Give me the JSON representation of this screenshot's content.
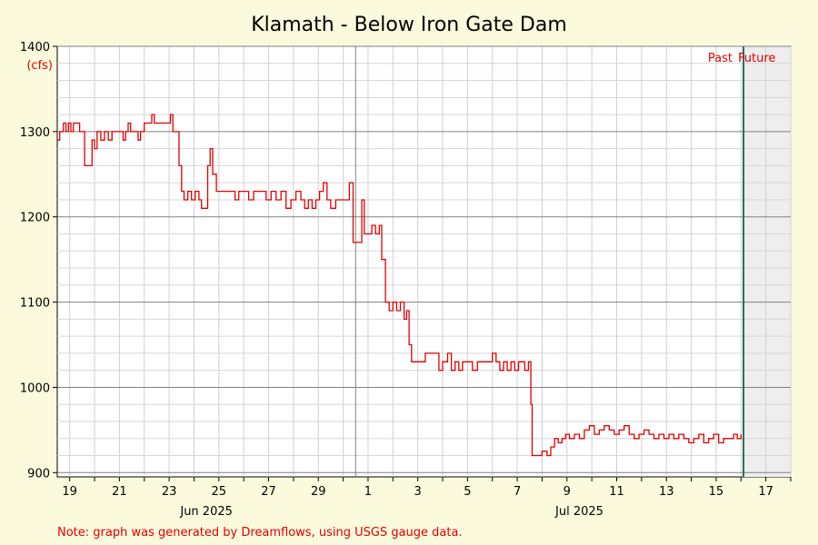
{
  "chart_data": {
    "type": "line",
    "title": "Klamath - Below Iron Gate Dam",
    "ylabel": "(cfs)",
    "xlabel": "",
    "ylim": [
      895,
      1400
    ],
    "y_ticks": [
      900,
      1000,
      1100,
      1200,
      1300,
      1400
    ],
    "xlim": [
      18.5,
      48
    ],
    "x_ticks": [
      {
        "day": 19,
        "label": "19"
      },
      {
        "day": 21,
        "label": "21"
      },
      {
        "day": 23,
        "label": "23"
      },
      {
        "day": 25,
        "label": "25"
      },
      {
        "day": 27,
        "label": "27"
      },
      {
        "day": 29,
        "label": "29"
      },
      {
        "day": 31,
        "label": "1"
      },
      {
        "day": 33,
        "label": "3"
      },
      {
        "day": 35,
        "label": "5"
      },
      {
        "day": 37,
        "label": "7"
      },
      {
        "day": 39,
        "label": "9"
      },
      {
        "day": 41,
        "label": "11"
      },
      {
        "day": 43,
        "label": "13"
      },
      {
        "day": 45,
        "label": "15"
      },
      {
        "day": 47,
        "label": "17"
      }
    ],
    "month_labels": [
      {
        "day": 24.5,
        "label": "Jun 2025"
      },
      {
        "day": 39.5,
        "label": "Jul 2025"
      }
    ],
    "month_boundary_day": 30.5,
    "now_day": 46.1,
    "past_label": "Past",
    "future_label": "Future",
    "grid": true,
    "series": [
      {
        "color": "#e00000",
        "points": [
          [
            18.5,
            1290
          ],
          [
            18.6,
            1300
          ],
          [
            18.75,
            1310
          ],
          [
            18.85,
            1300
          ],
          [
            18.95,
            1310
          ],
          [
            19.05,
            1300
          ],
          [
            19.15,
            1310
          ],
          [
            19.3,
            1310
          ],
          [
            19.4,
            1300
          ],
          [
            19.5,
            1300
          ],
          [
            19.6,
            1260
          ],
          [
            19.8,
            1260
          ],
          [
            19.9,
            1290
          ],
          [
            20.0,
            1280
          ],
          [
            20.1,
            1300
          ],
          [
            20.25,
            1290
          ],
          [
            20.4,
            1300
          ],
          [
            20.55,
            1290
          ],
          [
            20.7,
            1300
          ],
          [
            20.85,
            1300
          ],
          [
            21.0,
            1300
          ],
          [
            21.15,
            1290
          ],
          [
            21.25,
            1300
          ],
          [
            21.35,
            1310
          ],
          [
            21.45,
            1300
          ],
          [
            21.6,
            1300
          ],
          [
            21.75,
            1290
          ],
          [
            21.85,
            1300
          ],
          [
            22.0,
            1310
          ],
          [
            22.2,
            1310
          ],
          [
            22.3,
            1320
          ],
          [
            22.4,
            1310
          ],
          [
            22.6,
            1310
          ],
          [
            22.8,
            1310
          ],
          [
            23.0,
            1310
          ],
          [
            23.05,
            1320
          ],
          [
            23.15,
            1300
          ],
          [
            23.3,
            1300
          ],
          [
            23.4,
            1260
          ],
          [
            23.5,
            1230
          ],
          [
            23.6,
            1220
          ],
          [
            23.75,
            1230
          ],
          [
            23.9,
            1220
          ],
          [
            24.05,
            1230
          ],
          [
            24.2,
            1220
          ],
          [
            24.3,
            1210
          ],
          [
            24.45,
            1210
          ],
          [
            24.55,
            1260
          ],
          [
            24.65,
            1280
          ],
          [
            24.75,
            1250
          ],
          [
            24.9,
            1230
          ],
          [
            25.2,
            1230
          ],
          [
            25.5,
            1230
          ],
          [
            25.65,
            1220
          ],
          [
            25.8,
            1230
          ],
          [
            26.0,
            1230
          ],
          [
            26.2,
            1220
          ],
          [
            26.4,
            1230
          ],
          [
            26.7,
            1230
          ],
          [
            26.9,
            1220
          ],
          [
            27.1,
            1230
          ],
          [
            27.3,
            1220
          ],
          [
            27.5,
            1230
          ],
          [
            27.7,
            1210
          ],
          [
            27.9,
            1220
          ],
          [
            28.1,
            1230
          ],
          [
            28.3,
            1220
          ],
          [
            28.45,
            1210
          ],
          [
            28.6,
            1220
          ],
          [
            28.75,
            1210
          ],
          [
            28.9,
            1220
          ],
          [
            29.05,
            1230
          ],
          [
            29.2,
            1240
          ],
          [
            29.35,
            1220
          ],
          [
            29.5,
            1210
          ],
          [
            29.7,
            1220
          ],
          [
            29.9,
            1220
          ],
          [
            30.1,
            1220
          ],
          [
            30.25,
            1240
          ],
          [
            30.4,
            1170
          ],
          [
            30.55,
            1170
          ],
          [
            30.75,
            1220
          ],
          [
            30.85,
            1180
          ],
          [
            31.0,
            1180
          ],
          [
            31.15,
            1190
          ],
          [
            31.3,
            1180
          ],
          [
            31.45,
            1190
          ],
          [
            31.55,
            1150
          ],
          [
            31.7,
            1100
          ],
          [
            31.85,
            1090
          ],
          [
            32.0,
            1100
          ],
          [
            32.15,
            1090
          ],
          [
            32.3,
            1100
          ],
          [
            32.45,
            1080
          ],
          [
            32.55,
            1090
          ],
          [
            32.65,
            1050
          ],
          [
            32.75,
            1030
          ],
          [
            32.9,
            1030
          ],
          [
            33.1,
            1030
          ],
          [
            33.3,
            1040
          ],
          [
            33.5,
            1040
          ],
          [
            33.7,
            1040
          ],
          [
            33.85,
            1020
          ],
          [
            34.0,
            1030
          ],
          [
            34.2,
            1040
          ],
          [
            34.35,
            1020
          ],
          [
            34.5,
            1030
          ],
          [
            34.65,
            1020
          ],
          [
            34.8,
            1030
          ],
          [
            35.0,
            1030
          ],
          [
            35.2,
            1020
          ],
          [
            35.4,
            1030
          ],
          [
            35.6,
            1030
          ],
          [
            35.8,
            1030
          ],
          [
            36.0,
            1040
          ],
          [
            36.15,
            1030
          ],
          [
            36.3,
            1020
          ],
          [
            36.45,
            1030
          ],
          [
            36.6,
            1020
          ],
          [
            36.75,
            1030
          ],
          [
            36.9,
            1020
          ],
          [
            37.05,
            1030
          ],
          [
            37.2,
            1030
          ],
          [
            37.3,
            1020
          ],
          [
            37.45,
            1030
          ],
          [
            37.55,
            980
          ],
          [
            37.6,
            920
          ],
          [
            37.8,
            920
          ],
          [
            38.0,
            925
          ],
          [
            38.2,
            920
          ],
          [
            38.35,
            930
          ],
          [
            38.5,
            940
          ],
          [
            38.65,
            935
          ],
          [
            38.8,
            940
          ],
          [
            38.95,
            945
          ],
          [
            39.1,
            940
          ],
          [
            39.3,
            945
          ],
          [
            39.5,
            940
          ],
          [
            39.7,
            950
          ],
          [
            39.9,
            955
          ],
          [
            40.1,
            945
          ],
          [
            40.3,
            950
          ],
          [
            40.5,
            955
          ],
          [
            40.7,
            950
          ],
          [
            40.9,
            945
          ],
          [
            41.1,
            950
          ],
          [
            41.3,
            955
          ],
          [
            41.5,
            945
          ],
          [
            41.7,
            940
          ],
          [
            41.9,
            945
          ],
          [
            42.1,
            950
          ],
          [
            42.3,
            945
          ],
          [
            42.5,
            940
          ],
          [
            42.7,
            945
          ],
          [
            42.9,
            940
          ],
          [
            43.1,
            945
          ],
          [
            43.3,
            940
          ],
          [
            43.5,
            945
          ],
          [
            43.7,
            940
          ],
          [
            43.9,
            935
          ],
          [
            44.1,
            940
          ],
          [
            44.3,
            945
          ],
          [
            44.5,
            935
          ],
          [
            44.7,
            940
          ],
          [
            44.9,
            945
          ],
          [
            45.1,
            935
          ],
          [
            45.3,
            940
          ],
          [
            45.5,
            940
          ],
          [
            45.7,
            945
          ],
          [
            45.85,
            940
          ],
          [
            46.0,
            945
          ]
        ]
      }
    ],
    "note": "Note: graph was generated by Dreamflows, using USGS gauge data."
  }
}
